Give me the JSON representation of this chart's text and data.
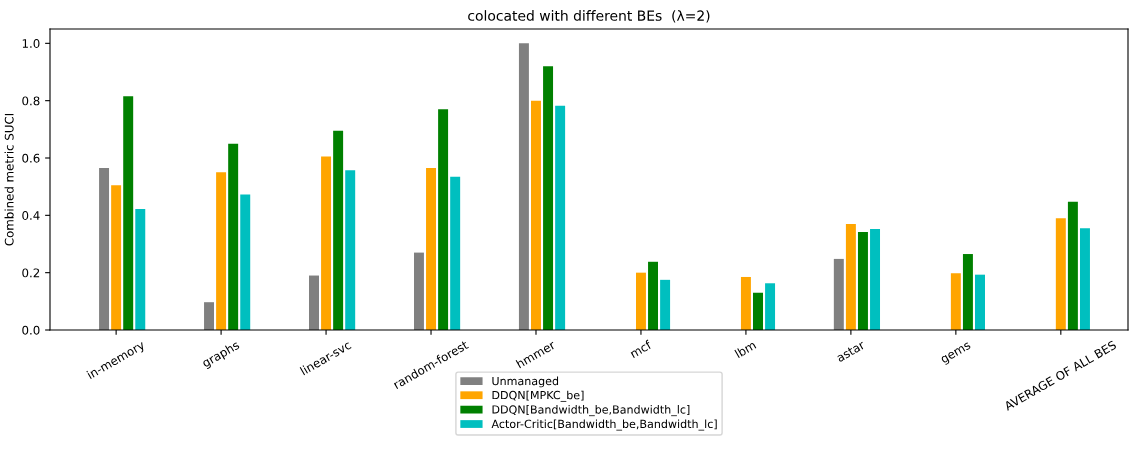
{
  "chart_data": {
    "type": "bar",
    "title": "colocated with different BEs  (λ=2)",
    "ylabel": "Combined metric SUCI",
    "categories": [
      "in-memory",
      "graphs",
      "linear-svc",
      "random-forest",
      "hmmer",
      "mcf",
      "lbm",
      "astar",
      "gems",
      "AVERAGE OF ALL BES"
    ],
    "series": [
      {
        "name": "Unmanaged",
        "color": "#808080",
        "values": [
          0.565,
          0.097,
          0.19,
          0.27,
          1.0,
          0,
          0,
          0.248,
          0,
          null
        ]
      },
      {
        "name": "DDQN[MPKC_be]",
        "color": "#ffa500",
        "values": [
          0.505,
          0.55,
          0.605,
          0.565,
          0.8,
          0.2,
          0.185,
          0.37,
          0.198,
          0.39
        ]
      },
      {
        "name": "DDQN[Bandwidth_be,Bandwidth_lc]",
        "color": "#008000",
        "values": [
          0.815,
          0.65,
          0.695,
          0.77,
          0.92,
          0.238,
          0.13,
          0.342,
          0.265,
          0.447
        ]
      },
      {
        "name": "Actor-Critic[Bandwidth_be,Bandwidth_lc]",
        "color": "#00bfbf",
        "values": [
          0.422,
          0.473,
          0.557,
          0.535,
          0.782,
          0.175,
          0.163,
          0.352,
          0.193,
          0.355
        ]
      }
    ],
    "ylim": [
      0,
      1.05
    ],
    "yticks": [
      {
        "value": 0,
        "label": "0.0"
      },
      {
        "value": 0.2,
        "label": "0.2"
      },
      {
        "value": 0.4,
        "label": "0.4"
      },
      {
        "value": 0.6,
        "label": "0.6"
      },
      {
        "value": 0.8,
        "label": "0.8"
      },
      {
        "value": 1.0,
        "label": "1.0"
      }
    ],
    "grid": false,
    "legend": "bottom"
  }
}
